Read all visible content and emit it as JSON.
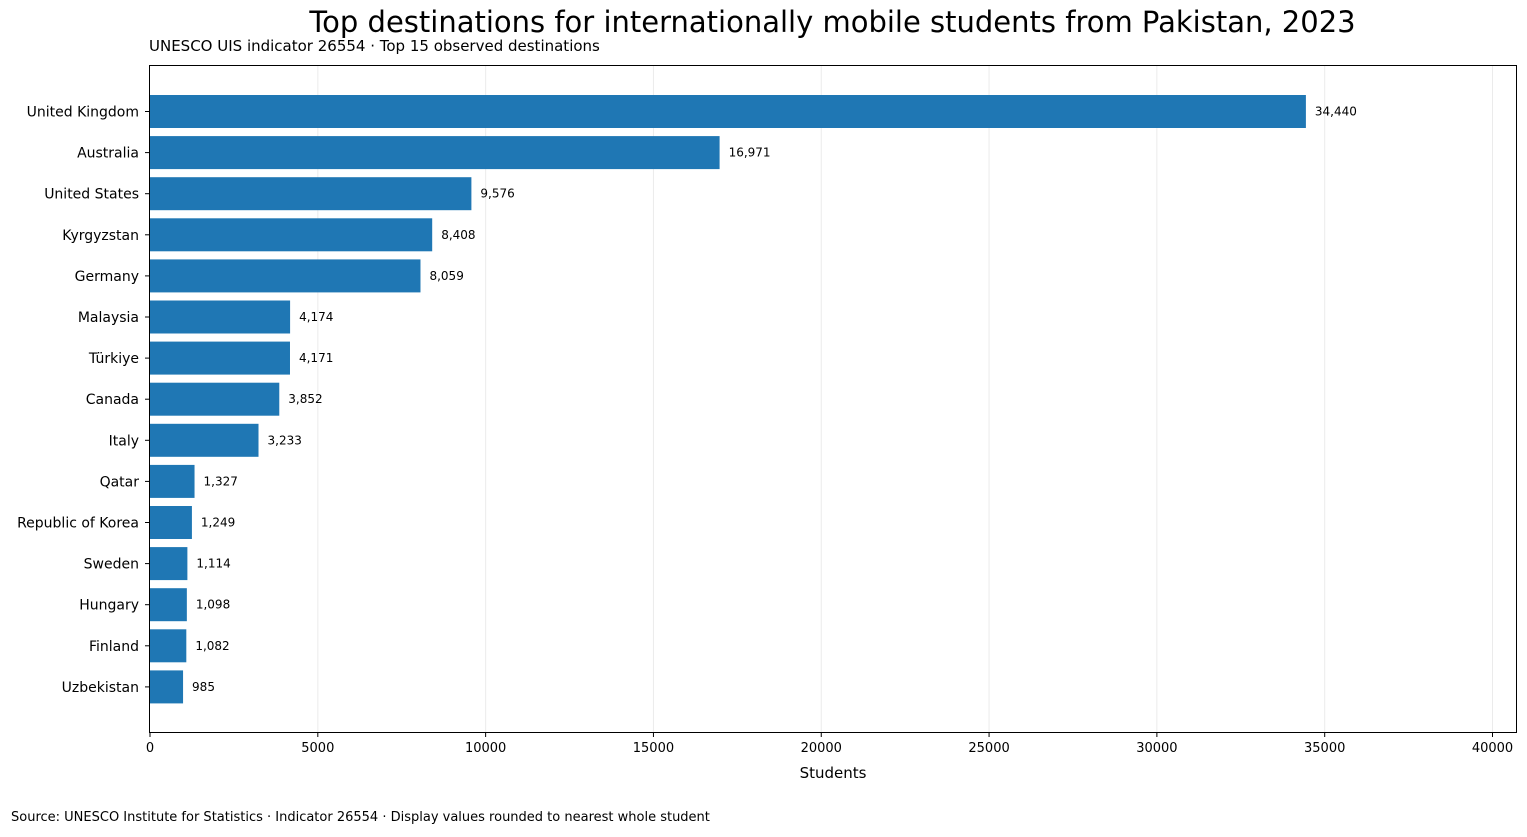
{
  "chart_data": {
    "type": "bar",
    "orientation": "horizontal",
    "title": "Top destinations for internationally mobile students from Pakistan, 2023",
    "subtitle": "UNESCO UIS indicator 26554 · Top 15 observed destinations",
    "xlabel": "Students",
    "ylabel": "",
    "xlim": [
      0,
      40700
    ],
    "xticks": [
      0,
      5000,
      10000,
      15000,
      20000,
      25000,
      30000,
      35000,
      40000
    ],
    "grid": "vertical",
    "bar_color": "#1f77b4",
    "categories": [
      "United Kingdom",
      "Australia",
      "United States",
      "Kyrgyzstan",
      "Germany",
      "Malaysia",
      "Türkiye",
      "Canada",
      "Italy",
      "Qatar",
      "Republic of Korea",
      "Sweden",
      "Hungary",
      "Finland",
      "Uzbekistan"
    ],
    "values": [
      34440,
      16971,
      9576,
      8408,
      8059,
      4174,
      4171,
      3852,
      3233,
      1327,
      1249,
      1114,
      1098,
      1082,
      985
    ],
    "value_labels": [
      "34,440",
      "16,971",
      "9,576",
      "8,408",
      "8,059",
      "4,174",
      "4,171",
      "3,852",
      "3,233",
      "1,327",
      "1,249",
      "1,114",
      "1,098",
      "1,082",
      "985"
    ]
  },
  "footer": {
    "source": "Source: UNESCO Institute for Statistics · Indicator 26554 · Display values rounded to nearest whole student"
  }
}
